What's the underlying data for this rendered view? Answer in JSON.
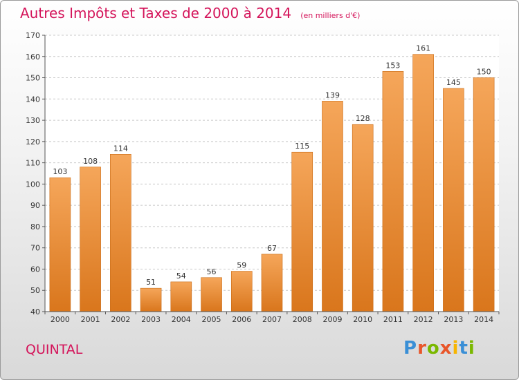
{
  "header": {
    "title": "Autres Impôts et Taxes de 2000 à 2014",
    "subtitle": "(en milliers d'€)"
  },
  "footer": {
    "commune": "QUINTAL",
    "logo_text": "Proxiti",
    "logo_colors": [
      "#3a8fd6",
      "#e8562a",
      "#7ab800",
      "#e8562a",
      "#f7b500",
      "#3a8fd6",
      "#7ab800"
    ]
  },
  "chart_data": {
    "type": "bar",
    "title": "Autres Impôts et Taxes de 2000 à 2014",
    "subtitle": "(en milliers d'€)",
    "categories": [
      "2000",
      "2001",
      "2002",
      "2003",
      "2004",
      "2005",
      "2006",
      "2007",
      "2008",
      "2009",
      "2010",
      "2011",
      "2012",
      "2013",
      "2014"
    ],
    "values": [
      103,
      108,
      114,
      51,
      54,
      56,
      59,
      67,
      115,
      139,
      128,
      153,
      161,
      145,
      150
    ],
    "ylim": [
      40,
      170
    ],
    "yticks": [
      40,
      50,
      60,
      70,
      80,
      90,
      100,
      110,
      120,
      130,
      140,
      150,
      160,
      170
    ],
    "grid": true,
    "bar_color_top": "#f5a65a",
    "bar_color_bottom": "#d9761c"
  }
}
